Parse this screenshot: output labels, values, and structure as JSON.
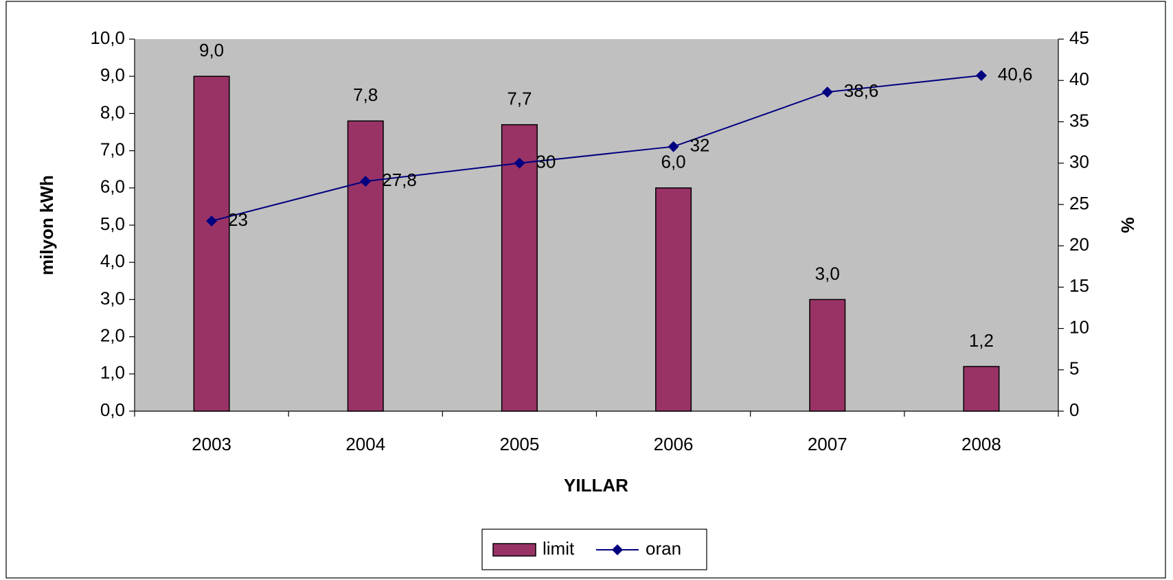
{
  "chart_data": {
    "type": "bar_line",
    "x_label": "YILLAR",
    "y_label": "milyon kWh",
    "y2_label": "%",
    "categories": [
      "2003",
      "2004",
      "2005",
      "2006",
      "2007",
      "2008"
    ],
    "series": [
      {
        "name": "limit",
        "type": "bar",
        "color": "#993366",
        "values": [
          9.0,
          7.8,
          7.7,
          6.0,
          3.0,
          1.2
        ],
        "value_labels": [
          "9,0",
          "7,8",
          "7,7",
          "6,0",
          "3,0",
          "1,2"
        ]
      },
      {
        "name": "oran",
        "type": "line",
        "axis": "y2",
        "color": "#000080",
        "values": [
          23,
          27.8,
          30,
          32,
          38.6,
          40.6
        ],
        "value_labels": [
          "23",
          "27,8",
          "30",
          "32",
          "38,6",
          "40,6"
        ]
      }
    ],
    "ylim": [
      0,
      10
    ],
    "yticks": [
      {
        "value": 0,
        "label": "0,0"
      },
      {
        "value": 1,
        "label": "1,0"
      },
      {
        "value": 2,
        "label": "2,0"
      },
      {
        "value": 3,
        "label": "3,0"
      },
      {
        "value": 4,
        "label": "4,0"
      },
      {
        "value": 5,
        "label": "5,0"
      },
      {
        "value": 6,
        "label": "6,0"
      },
      {
        "value": 7,
        "label": "7,0"
      },
      {
        "value": 8,
        "label": "8,0"
      },
      {
        "value": 9,
        "label": "9,0"
      },
      {
        "value": 10,
        "label": "10,0"
      }
    ],
    "y2lim": [
      0,
      45
    ],
    "y2ticks": [
      0,
      5,
      10,
      15,
      20,
      25,
      30,
      35,
      40,
      45
    ],
    "plot_background": "#c0c0c0",
    "legend": "bottom"
  }
}
